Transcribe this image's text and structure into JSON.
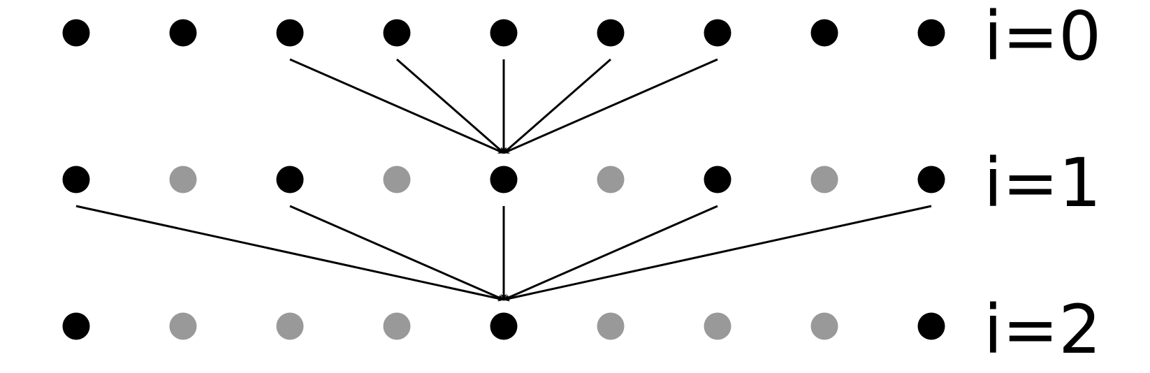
{
  "colors": {
    "active_node": "#000000",
    "inactive_node": "#999999",
    "arrow": "#000000",
    "background": "#ffffff"
  },
  "rows": [
    {
      "label": "i=0",
      "nodes": [
        "active",
        "active",
        "active",
        "active",
        "active",
        "active",
        "active",
        "active",
        "active"
      ],
      "arrows_in_from_previous_row": []
    },
    {
      "label": "i=1",
      "nodes": [
        "active",
        "inactive",
        "active",
        "inactive",
        "active",
        "inactive",
        "active",
        "inactive",
        "active"
      ],
      "arrows_in_from_previous_row": [
        {
          "from_col": 2,
          "to_col": 4
        },
        {
          "from_col": 3,
          "to_col": 4
        },
        {
          "from_col": 4,
          "to_col": 4
        },
        {
          "from_col": 5,
          "to_col": 4
        },
        {
          "from_col": 6,
          "to_col": 4
        }
      ]
    },
    {
      "label": "i=2",
      "nodes": [
        "active",
        "inactive",
        "inactive",
        "inactive",
        "active",
        "inactive",
        "inactive",
        "inactive",
        "active"
      ],
      "arrows_in_from_previous_row": [
        {
          "from_col": 0,
          "to_col": 4
        },
        {
          "from_col": 2,
          "to_col": 4
        },
        {
          "from_col": 4,
          "to_col": 4
        },
        {
          "from_col": 6,
          "to_col": 4
        },
        {
          "from_col": 8,
          "to_col": 4
        }
      ]
    }
  ]
}
